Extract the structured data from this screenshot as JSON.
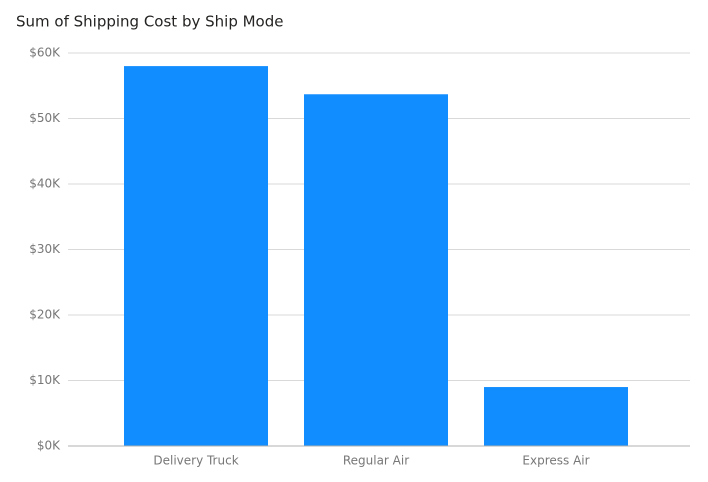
{
  "chart_data": {
    "type": "bar",
    "title": "Sum of Shipping Cost by Ship Mode",
    "categories": [
      "Delivery Truck",
      "Regular Air",
      "Express Air"
    ],
    "values": [
      58000,
      53700,
      9000
    ],
    "color": "#118dff",
    "ylim": [
      0,
      60000
    ],
    "yticks": [
      {
        "value": 0,
        "label": "$0K"
      },
      {
        "value": 10000,
        "label": "$10K"
      },
      {
        "value": 20000,
        "label": "$20K"
      },
      {
        "value": 30000,
        "label": "$30K"
      },
      {
        "value": 40000,
        "label": "$40K"
      },
      {
        "value": 50000,
        "label": "$50K"
      },
      {
        "value": 60000,
        "label": "$60K"
      }
    ],
    "grid": true
  }
}
